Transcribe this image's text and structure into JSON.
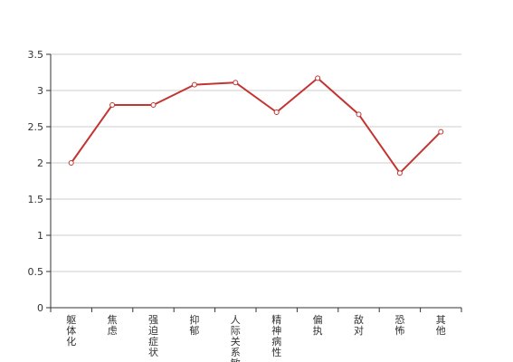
{
  "chart_data": {
    "type": "line",
    "categories": [
      "躯体化",
      "焦虑",
      "强迫症状",
      "抑郁",
      "人际关系敏感",
      "精神病性",
      "偏执",
      "敌对",
      "恐怖",
      "其他"
    ],
    "series": [
      {
        "values": [
          2.0,
          2.8,
          2.8,
          3.08,
          3.11,
          2.7,
          3.17,
          2.67,
          1.86,
          2.43
        ]
      }
    ],
    "ylim": [
      0,
      3.5
    ],
    "yticks": [
      0,
      0.5,
      1,
      1.5,
      2,
      2.5,
      3,
      3.5
    ],
    "ytick_labels": [
      "0",
      "0.5",
      "1",
      "1.5",
      "2",
      "2.5",
      "3",
      "3.5"
    ],
    "grid": true,
    "legend": "none",
    "title": "",
    "xlabel": "",
    "ylabel": "",
    "colors": {
      "line": "#c23531",
      "grid": "#cccccc",
      "axis": "#333333"
    }
  }
}
